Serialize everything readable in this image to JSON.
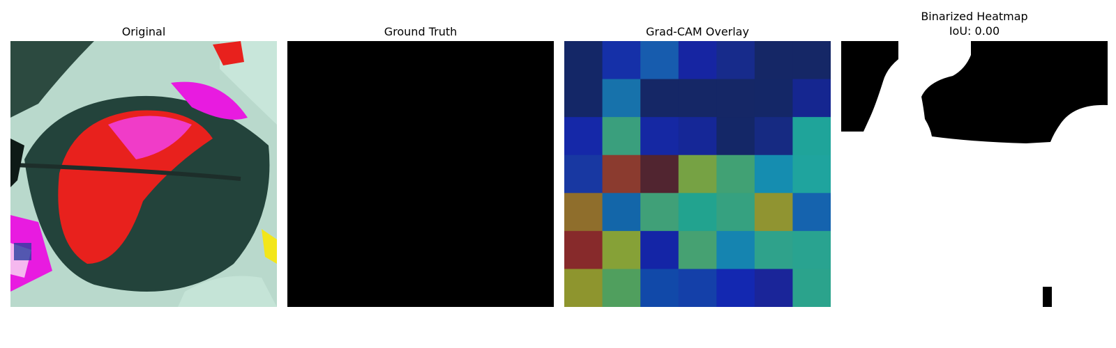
{
  "panels": {
    "original": {
      "title": "Original"
    },
    "ground_truth": {
      "title": "Ground Truth"
    },
    "gradcam": {
      "title": "Grad-CAM Overlay",
      "grid_colors": [
        [
          "#142767",
          "#1530a8",
          "#175cae",
          "#1625a2",
          "#172b8b",
          "#152766",
          "#152766"
        ],
        [
          "#142767",
          "#1772ab",
          "#152766",
          "#152766",
          "#152766",
          "#142767",
          "#152690"
        ],
        [
          "#1528a8",
          "#3a9f7d",
          "#1528a3",
          "#152797",
          "#142767",
          "#162a82",
          "#1fa49a"
        ],
        [
          "#1838a2",
          "#8b3b2f",
          "#512530",
          "#76a244",
          "#41a174",
          "#158db0",
          "#1fa49e"
        ],
        [
          "#8f6e2c",
          "#1366a9",
          "#40a078",
          "#22a38f",
          "#36a180",
          "#909431",
          "#1563ae"
        ],
        [
          "#872a2b",
          "#86a137",
          "#1425a6",
          "#46a172",
          "#1584b0",
          "#2fa28b",
          "#29a390"
        ],
        [
          "#8e952e",
          "#509f5e",
          "#1149a9",
          "#1440a9",
          "#1328b1",
          "#1a2599",
          "#2ba38c"
        ]
      ]
    },
    "binarized": {
      "title": "Binarized Heatmap",
      "iou_text": "IoU: 0.00"
    }
  }
}
